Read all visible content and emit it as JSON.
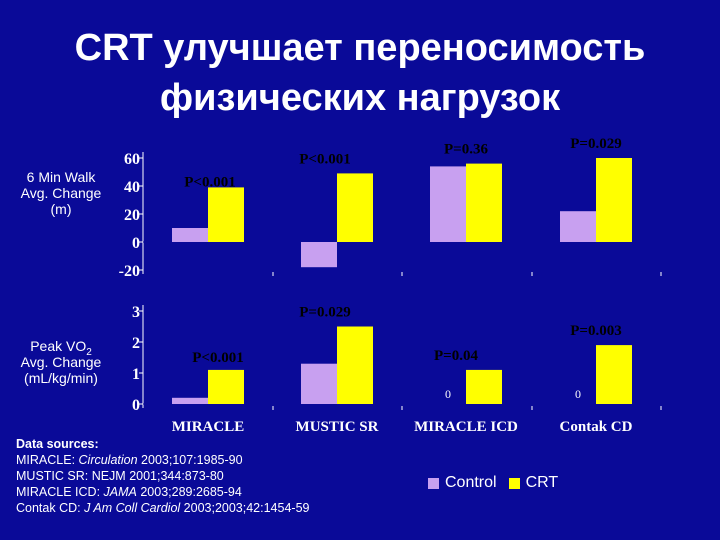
{
  "title": {
    "line1": "CRT улучшает переносимость",
    "line2": "физических нагрузок"
  },
  "colors": {
    "background": "#0A0A98",
    "control": "#C8A0F0",
    "crt": "#FFFF00",
    "axis_text": "#FFFFFF",
    "pvalue_text": "#000000"
  },
  "chart_data": [
    {
      "type": "bar",
      "ylabel_lines": [
        "6 Min Walk",
        "Avg. Change",
        "(m)"
      ],
      "ylim": [
        -20,
        60
      ],
      "yticks": [
        {
          "value": 60,
          "label": "60"
        },
        {
          "value": 40,
          "label": "40"
        },
        {
          "value": 20,
          "label": "20"
        },
        {
          "value": 0,
          "label": "0"
        },
        {
          "value": -20,
          "label": "-20"
        }
      ],
      "categories": [
        "MIRACLE",
        "MUSTIC SR",
        "MIRACLE ICD",
        "Contak CD"
      ],
      "series": [
        {
          "name": "Control",
          "values": [
            10,
            -18,
            54,
            22
          ]
        },
        {
          "name": "CRT",
          "values": [
            39,
            49,
            56,
            60
          ]
        }
      ],
      "pvalues": [
        "P<0.001",
        "P<0.001",
        "P=0.36",
        "P=0.029"
      ],
      "zero_labels": [
        "",
        "",
        "",
        ""
      ]
    },
    {
      "type": "bar",
      "ylabel_lines": [
        "Peak VO",
        "Avg. Change",
        "(mL/kg/min)"
      ],
      "ylabel_sub": "2",
      "ylim": [
        0,
        3
      ],
      "yticks": [
        {
          "value": 3,
          "label": "3"
        },
        {
          "value": 2,
          "label": "2"
        },
        {
          "value": 1,
          "label": "1"
        },
        {
          "value": 0,
          "label": "0"
        }
      ],
      "categories": [
        "MIRACLE",
        "MUSTIC SR",
        "MIRACLE ICD",
        "Contak CD"
      ],
      "series": [
        {
          "name": "Control",
          "values": [
            0.2,
            1.3,
            0,
            0
          ]
        },
        {
          "name": "CRT",
          "values": [
            1.1,
            2.5,
            1.1,
            1.9
          ]
        }
      ],
      "pvalues": [
        "P<0.001",
        "P=0.029",
        "P=0.04",
        "P=0.003"
      ],
      "zero_labels": [
        "",
        "",
        "0",
        "0"
      ]
    }
  ],
  "sources": {
    "heading": "Data sources:",
    "lines": [
      "MIRACLE: Circulation 2003;107:1985-90",
      "MUSTIC SR: NEJM 2001;344:873-80",
      "MIRACLE ICD: JAMA 2003;289:2685-94",
      "Contak CD: J Am Coll Cardiol 2003;2003;42:1454-59"
    ]
  },
  "legend": {
    "control": "Control",
    "crt": "CRT"
  }
}
